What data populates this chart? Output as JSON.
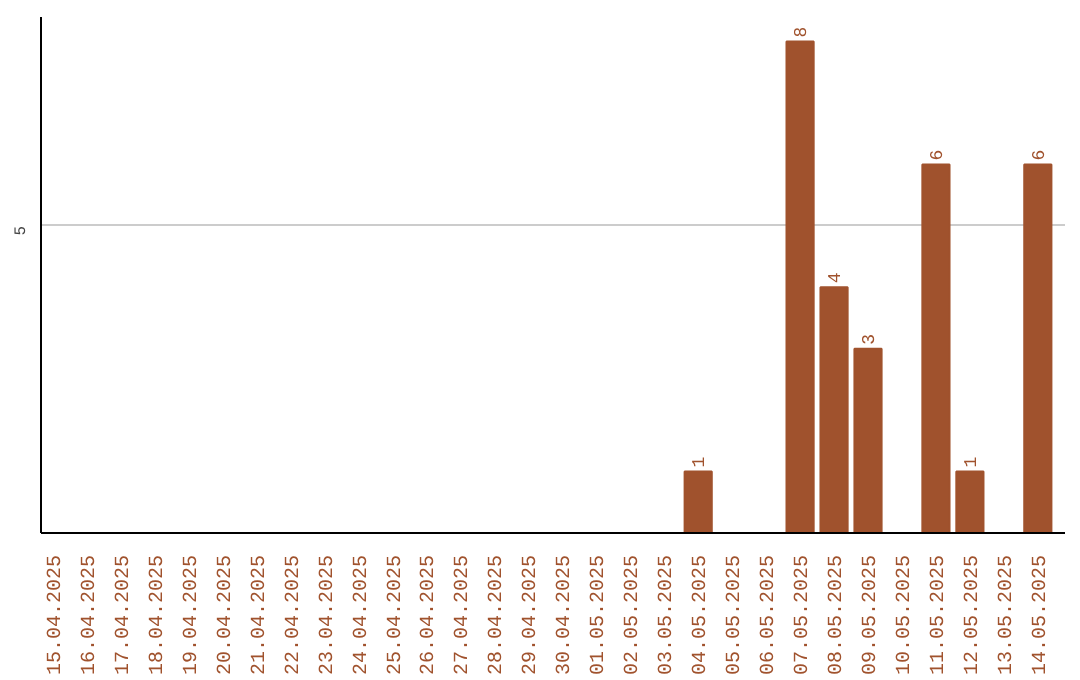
{
  "chart_data": {
    "type": "bar",
    "categories": [
      "15.04.2025",
      "16.04.2025",
      "17.04.2025",
      "18.04.2025",
      "19.04.2025",
      "20.04.2025",
      "21.04.2025",
      "22.04.2025",
      "23.04.2025",
      "24.04.2025",
      "25.04.2025",
      "26.04.2025",
      "27.04.2025",
      "28.04.2025",
      "29.04.2025",
      "30.04.2025",
      "01.05.2025",
      "02.05.2025",
      "03.05.2025",
      "04.05.2025",
      "05.05.2025",
      "06.05.2025",
      "07.05.2025",
      "08.05.2025",
      "09.05.2025",
      "10.05.2025",
      "11.05.2025",
      "12.05.2025",
      "13.05.2025",
      "14.05.2025"
    ],
    "values": [
      null,
      null,
      null,
      null,
      null,
      null,
      null,
      null,
      null,
      null,
      null,
      null,
      null,
      null,
      null,
      null,
      null,
      null,
      null,
      1,
      null,
      null,
      8,
      4,
      3,
      null,
      6,
      1,
      null,
      6
    ],
    "color": "#a0522d",
    "ylim": [
      0,
      8.4
    ],
    "yticks": [
      5
    ],
    "grid": "y",
    "data_labels": true
  }
}
